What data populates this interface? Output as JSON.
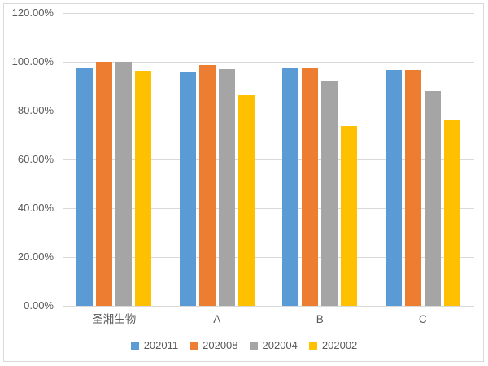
{
  "chart_data": {
    "type": "bar",
    "title": "",
    "xlabel": "",
    "ylabel": "",
    "categories": [
      "圣湘生物",
      "A",
      "B",
      "C"
    ],
    "series": [
      {
        "name": "202011",
        "color": "#5B9BD5",
        "values": [
          97.3,
          95.9,
          97.8,
          96.7
        ]
      },
      {
        "name": "202008",
        "color": "#ED7D31",
        "values": [
          100.0,
          98.7,
          97.8,
          96.7
        ]
      },
      {
        "name": "202004",
        "color": "#A5A5A5",
        "values": [
          100.0,
          97.0,
          92.2,
          88.1
        ]
      },
      {
        "name": "202002",
        "color": "#FFC000",
        "values": [
          96.5,
          86.2,
          73.7,
          76.4
        ]
      }
    ],
    "ylim": [
      0,
      120
    ],
    "y_tick_step": 20,
    "y_tick_labels": [
      "0.00%",
      "20.00%",
      "40.00%",
      "60.00%",
      "80.00%",
      "100.00%",
      "120.00%"
    ],
    "grid": true,
    "legend_position": "bottom"
  },
  "style": {
    "background": "#FFFFFF",
    "axis_text_color": "#595959",
    "gridline_color": "#D9D9D9",
    "border_color": "#D9D9D9"
  }
}
